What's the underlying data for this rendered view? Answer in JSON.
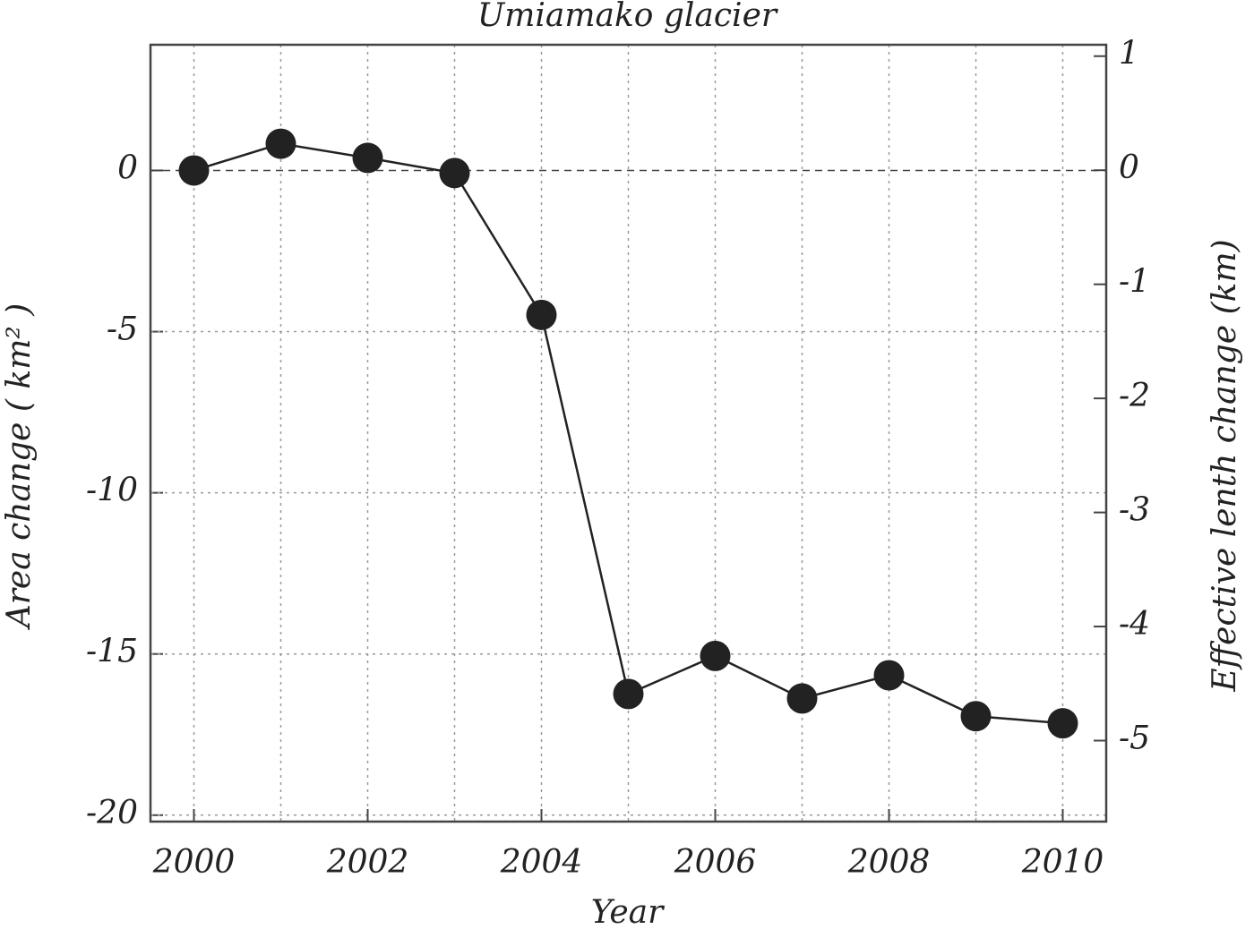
{
  "chart_data": {
    "type": "line",
    "title": "Umiamako glacier",
    "x_label": "Year",
    "y_label": "Area change ( km² )",
    "y2_label": "Effective lenth change (km)",
    "x": [
      2000,
      2001,
      2002,
      2003,
      2004,
      2005,
      2006,
      2007,
      2008,
      2009,
      2010
    ],
    "series": [
      {
        "name": "Area change",
        "color": "#222222",
        "values": [
          0,
          0.83,
          0.39,
          -0.08,
          -4.48,
          -16.24,
          -15.06,
          -16.38,
          -15.66,
          -16.93,
          -17.15
        ]
      }
    ],
    "xlim": [
      1999.5,
      2010.5
    ],
    "xticks": [
      2000,
      2002,
      2004,
      2006,
      2008,
      2010
    ],
    "ylim": [
      -20.2,
      3.9
    ],
    "yticks": [
      -20,
      -15,
      -10,
      -5,
      0
    ],
    "y2lim": [
      -5.71,
      1.1
    ],
    "y2ticks": [
      -5,
      -4,
      -3,
      -2,
      -1,
      0,
      1
    ],
    "grid": true
  }
}
